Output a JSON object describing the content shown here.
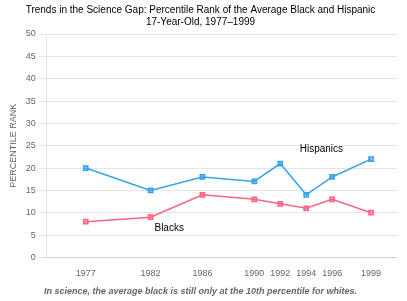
{
  "chart_data": {
    "type": "line",
    "title": [
      "Trends in the Science Gap: Percentile Rank of the Average Black and Hispanic",
      "17-Year-Old, 1977–1999"
    ],
    "caption": "In science, the average black is still only at the 10th percentile for whites.",
    "y_label": "PERCENTILE RANK",
    "x": [
      1977,
      1982,
      1986,
      1990,
      1992,
      1994,
      1996,
      1999
    ],
    "series": [
      {
        "name": "Hispanics",
        "values": [
          20,
          15,
          18,
          17,
          21,
          14,
          18,
          22
        ]
      },
      {
        "name": "Blacks",
        "values": [
          8,
          9,
          14,
          13,
          12,
          11,
          13,
          10
        ]
      }
    ],
    "annotations": [
      {
        "text": "Hispanics",
        "x": 1993.5,
        "y": 23.5
      },
      {
        "text": "Blacks",
        "x": 1982.3,
        "y": 6.0
      }
    ],
    "xlim": [
      1974,
      2001
    ],
    "xticks": [
      1977,
      1982,
      1986,
      1990,
      1992,
      1994,
      1996,
      1999
    ],
    "ylim": [
      0,
      50
    ],
    "yticks": [
      0,
      5,
      10,
      15,
      20,
      25,
      30,
      35,
      40,
      45,
      50
    ],
    "grid": "y",
    "marker": "square",
    "line_style": "solid"
  }
}
